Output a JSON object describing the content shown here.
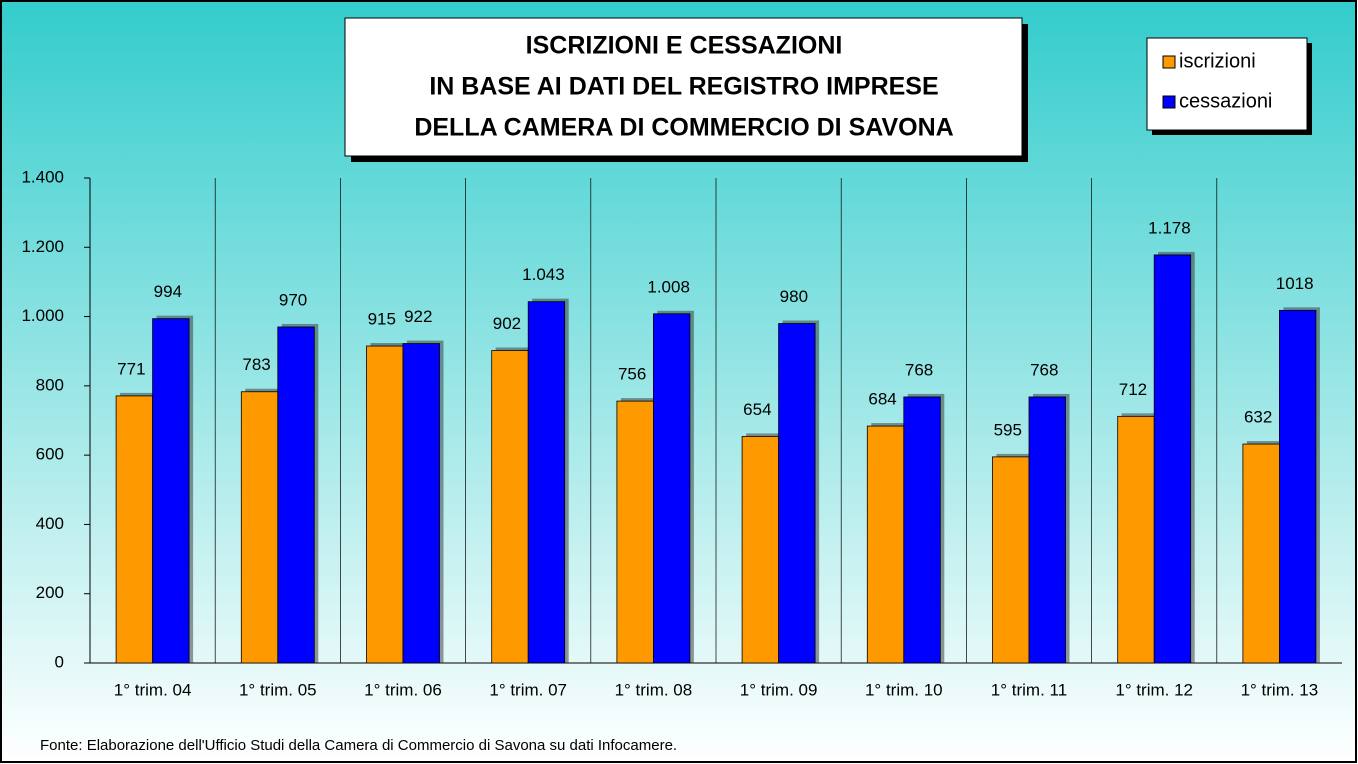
{
  "chart_data": {
    "type": "bar",
    "title_lines": [
      "ISCRIZIONI E CESSAZIONI",
      "IN BASE AI DATI DEL REGISTRO IMPRESE",
      "DELLA CAMERA DI COMMERCIO DI SAVONA"
    ],
    "categories": [
      "1° trim. 04",
      "1° trim. 05",
      "1° trim. 06",
      "1° trim. 07",
      "1° trim. 08",
      "1° trim. 09",
      "1° trim. 10",
      "1° trim. 11",
      "1° trim. 12",
      "1° trim. 13"
    ],
    "series": [
      {
        "name": "iscrizioni",
        "color": "#ff9900",
        "values": [
          771,
          783,
          915,
          902,
          756,
          654,
          684,
          595,
          712,
          632
        ]
      },
      {
        "name": "cessazioni",
        "color": "#0000ff",
        "values": [
          994,
          970,
          922,
          1043,
          1008,
          980,
          768,
          768,
          1178,
          1018
        ],
        "value_labels": [
          "994",
          "970",
          "922",
          "1.043",
          "1.008",
          "980",
          "768",
          "768",
          "1.178",
          "1018"
        ]
      }
    ],
    "ylim": [
      0,
      1400
    ],
    "yticks": [
      0,
      200,
      400,
      600,
      800,
      {
        "value": 1000,
        "label": "1.000"
      },
      {
        "value": 1200,
        "label": "1.200"
      },
      {
        "value": 1400,
        "label": "1.400"
      }
    ],
    "grid": true,
    "legend": "top-right",
    "source": "Fonte: Elaborazione dell'Ufficio Studi della Camera di Commercio di Savona su dati Infocamere."
  }
}
